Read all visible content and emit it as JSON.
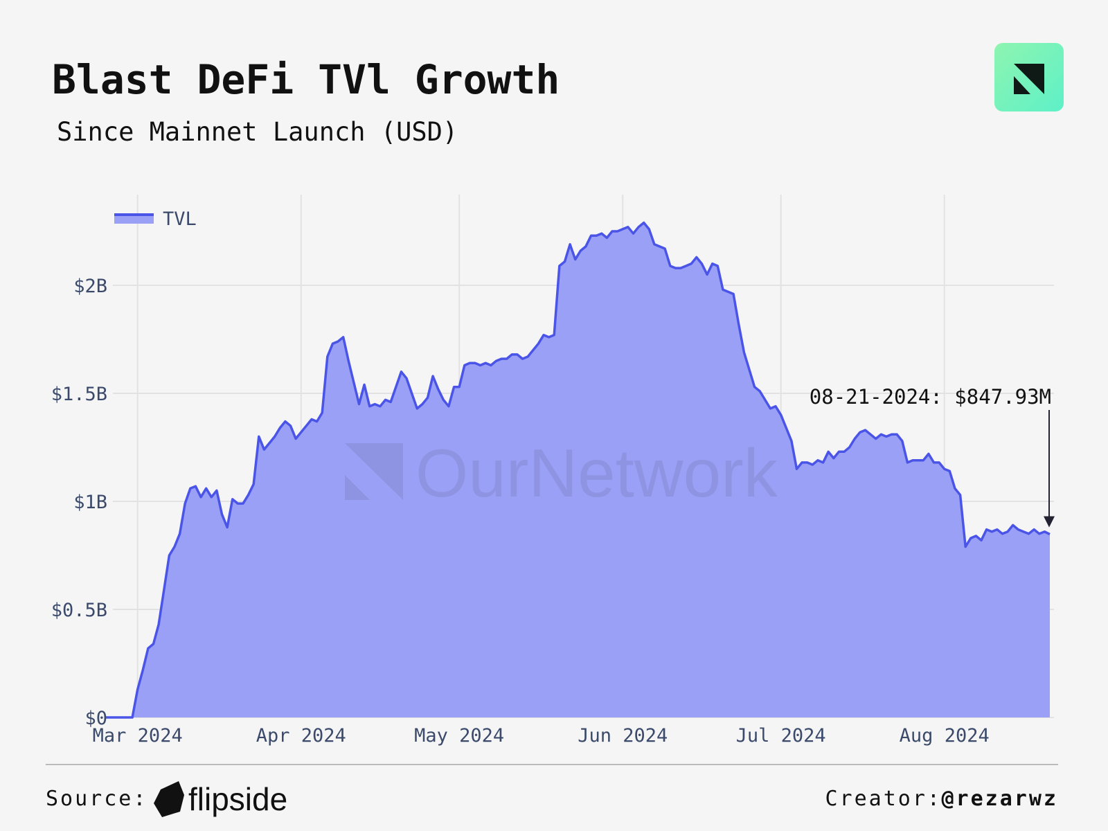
{
  "chart_data": {
    "type": "area",
    "title": "Blast DeFi TVl Growth",
    "subtitle": "Since Mainnet Launch (USD)",
    "watermark": "OurNetwork",
    "x": [
      "2024-02-24",
      "2024-02-25",
      "2024-02-26",
      "2024-02-27",
      "2024-02-28",
      "2024-02-29",
      "2024-03-01",
      "2024-03-02",
      "2024-03-03",
      "2024-03-04",
      "2024-03-05",
      "2024-03-06",
      "2024-03-07",
      "2024-03-08",
      "2024-03-09",
      "2024-03-10",
      "2024-03-11",
      "2024-03-12",
      "2024-03-13",
      "2024-03-14",
      "2024-03-15",
      "2024-03-16",
      "2024-03-17",
      "2024-03-18",
      "2024-03-19",
      "2024-03-20",
      "2024-03-21",
      "2024-03-22",
      "2024-03-23",
      "2024-03-24",
      "2024-03-25",
      "2024-03-26",
      "2024-03-27",
      "2024-03-28",
      "2024-03-29",
      "2024-03-30",
      "2024-03-31",
      "2024-04-01",
      "2024-04-02",
      "2024-04-03",
      "2024-04-04",
      "2024-04-05",
      "2024-04-06",
      "2024-04-07",
      "2024-04-08",
      "2024-04-09",
      "2024-04-10",
      "2024-04-11",
      "2024-04-12",
      "2024-04-13",
      "2024-04-14",
      "2024-04-15",
      "2024-04-16",
      "2024-04-17",
      "2024-04-18",
      "2024-04-19",
      "2024-04-20",
      "2024-04-21",
      "2024-04-22",
      "2024-04-23",
      "2024-04-24",
      "2024-04-25",
      "2024-04-26",
      "2024-04-27",
      "2024-04-28",
      "2024-04-29",
      "2024-04-30",
      "2024-05-01",
      "2024-05-02",
      "2024-05-03",
      "2024-05-04",
      "2024-05-05",
      "2024-05-06",
      "2024-05-07",
      "2024-05-08",
      "2024-05-09",
      "2024-05-10",
      "2024-05-11",
      "2024-05-12",
      "2024-05-13",
      "2024-05-14",
      "2024-05-15",
      "2024-05-16",
      "2024-05-17",
      "2024-05-18",
      "2024-05-19",
      "2024-05-20",
      "2024-05-21",
      "2024-05-22",
      "2024-05-23",
      "2024-05-24",
      "2024-05-25",
      "2024-05-26",
      "2024-05-27",
      "2024-05-28",
      "2024-05-29",
      "2024-05-30",
      "2024-05-31",
      "2024-06-01",
      "2024-06-02",
      "2024-06-03",
      "2024-06-04",
      "2024-06-05",
      "2024-06-06",
      "2024-06-07",
      "2024-06-08",
      "2024-06-09",
      "2024-06-10",
      "2024-06-11",
      "2024-06-12",
      "2024-06-13",
      "2024-06-14",
      "2024-06-15",
      "2024-06-16",
      "2024-06-17",
      "2024-06-18",
      "2024-06-19",
      "2024-06-20",
      "2024-06-21",
      "2024-06-22",
      "2024-06-23",
      "2024-06-24",
      "2024-06-25",
      "2024-06-26",
      "2024-06-27",
      "2024-06-28",
      "2024-06-29",
      "2024-06-30",
      "2024-07-01",
      "2024-07-02",
      "2024-07-03",
      "2024-07-04",
      "2024-07-05",
      "2024-07-06",
      "2024-07-07",
      "2024-07-08",
      "2024-07-09",
      "2024-07-10",
      "2024-07-11",
      "2024-07-12",
      "2024-07-13",
      "2024-07-14",
      "2024-07-15",
      "2024-07-16",
      "2024-07-17",
      "2024-07-18",
      "2024-07-19",
      "2024-07-20",
      "2024-07-21",
      "2024-07-22",
      "2024-07-23",
      "2024-07-24",
      "2024-07-25",
      "2024-07-26",
      "2024-07-27",
      "2024-07-28",
      "2024-07-29",
      "2024-07-30",
      "2024-07-31",
      "2024-08-01",
      "2024-08-02",
      "2024-08-03",
      "2024-08-04",
      "2024-08-05",
      "2024-08-06",
      "2024-08-07",
      "2024-08-08",
      "2024-08-09",
      "2024-08-10",
      "2024-08-11",
      "2024-08-12",
      "2024-08-13",
      "2024-08-14",
      "2024-08-15",
      "2024-08-16",
      "2024-08-17",
      "2024-08-18",
      "2024-08-19",
      "2024-08-20",
      "2024-08-21"
    ],
    "series": [
      {
        "name": "TVL",
        "color": "#4a55e8",
        "fill": "#9aa0f5",
        "values": [
          0,
          0,
          0,
          0,
          0,
          0,
          0.13,
          0.22,
          0.32,
          0.34,
          0.43,
          0.59,
          0.75,
          0.79,
          0.85,
          0.99,
          1.06,
          1.07,
          1.02,
          1.06,
          1.02,
          1.05,
          0.94,
          0.88,
          1.01,
          0.99,
          0.99,
          1.03,
          1.08,
          1.3,
          1.24,
          1.27,
          1.3,
          1.34,
          1.37,
          1.35,
          1.29,
          1.32,
          1.35,
          1.38,
          1.37,
          1.41,
          1.67,
          1.73,
          1.74,
          1.76,
          1.65,
          1.55,
          1.45,
          1.54,
          1.44,
          1.45,
          1.44,
          1.47,
          1.46,
          1.53,
          1.6,
          1.57,
          1.5,
          1.43,
          1.45,
          1.48,
          1.58,
          1.52,
          1.47,
          1.44,
          1.53,
          1.53,
          1.63,
          1.64,
          1.64,
          1.63,
          1.64,
          1.63,
          1.65,
          1.66,
          1.66,
          1.68,
          1.68,
          1.66,
          1.67,
          1.7,
          1.73,
          1.77,
          1.76,
          1.77,
          2.09,
          2.11,
          2.19,
          2.12,
          2.16,
          2.18,
          2.23,
          2.23,
          2.24,
          2.22,
          2.25,
          2.25,
          2.26,
          2.27,
          2.24,
          2.27,
          2.29,
          2.26,
          2.19,
          2.18,
          2.17,
          2.09,
          2.08,
          2.08,
          2.09,
          2.1,
          2.13,
          2.1,
          2.05,
          2.1,
          2.09,
          1.98,
          1.97,
          1.96,
          1.82,
          1.69,
          1.61,
          1.53,
          1.51,
          1.47,
          1.43,
          1.44,
          1.4,
          1.34,
          1.28,
          1.15,
          1.18,
          1.18,
          1.17,
          1.19,
          1.18,
          1.23,
          1.2,
          1.23,
          1.23,
          1.25,
          1.29,
          1.32,
          1.33,
          1.31,
          1.29,
          1.31,
          1.3,
          1.31,
          1.31,
          1.28,
          1.18,
          1.19,
          1.19,
          1.19,
          1.22,
          1.18,
          1.18,
          1.15,
          1.14,
          1.06,
          1.03,
          0.79,
          0.83,
          0.84,
          0.82,
          0.87,
          0.86,
          0.87,
          0.85,
          0.86,
          0.89,
          0.87,
          0.86,
          0.85,
          0.87,
          0.85,
          0.86,
          0.84793
        ]
      }
    ],
    "xlim": [
      "2024-02-24",
      "2024-08-21"
    ],
    "xticks": [
      {
        "value": "2024-03-01",
        "label": "Mar 2024"
      },
      {
        "value": "2024-04-01",
        "label": "Apr 2024"
      },
      {
        "value": "2024-05-01",
        "label": "May 2024"
      },
      {
        "value": "2024-06-01",
        "label": "Jun 2024"
      },
      {
        "value": "2024-07-01",
        "label": "Jul 2024"
      },
      {
        "value": "2024-08-01",
        "label": "Aug 2024"
      }
    ],
    "ylim": [
      0,
      2.42
    ],
    "yticks": [
      {
        "value": 0,
        "label": "$0"
      },
      {
        "value": 0.5,
        "label": "$0.5B"
      },
      {
        "value": 1,
        "label": "$1B"
      },
      {
        "value": 1.5,
        "label": "$1.5B"
      },
      {
        "value": 2,
        "label": "$2B"
      }
    ],
    "grid": true,
    "legend": "top-left",
    "annotation": {
      "text": "08-21-2024: $847.93M",
      "x": "2024-08-21",
      "y": 0.84793
    }
  },
  "footer": {
    "source_label": "Source:",
    "source": "flipside",
    "creator_label": "Creator:",
    "creator": "@rezarwz"
  }
}
